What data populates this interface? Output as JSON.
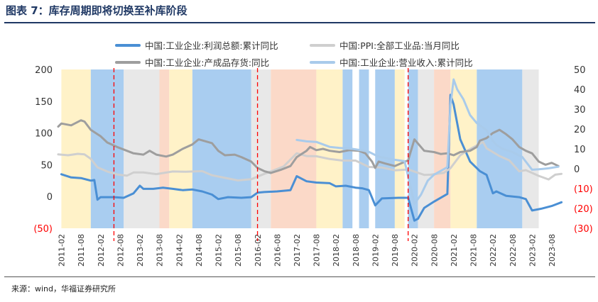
{
  "header": {
    "title": "图表 7：库存周期即将切换至补库阶段"
  },
  "footer": {
    "source": "来源：wind，华福证券研究所"
  },
  "chart_data": {
    "type": "line",
    "y_left": {
      "ticks": [
        "200",
        "150",
        "100",
        "50",
        "0",
        "(50)"
      ],
      "range": [
        -50,
        200
      ]
    },
    "y_right": {
      "ticks": [
        "50",
        "40",
        "30",
        "20",
        "10",
        "0",
        "(10)",
        "(20)",
        "(30)"
      ],
      "range": [
        -30,
        50
      ]
    },
    "x_ticks": [
      "2011-02",
      "2011-08",
      "2012-02",
      "2012-08",
      "2013-02",
      "2013-08",
      "2014-02",
      "2014-08",
      "2015-02",
      "2015-08",
      "2016-02",
      "2016-08",
      "2017-02",
      "2017-08",
      "2018-02",
      "2018-08",
      "2019-02",
      "2019-08",
      "2020-02",
      "2020-08",
      "2021-02",
      "2021-08",
      "2022-02",
      "2022-08",
      "2023-02",
      "2023-08"
    ],
    "colors": {
      "profit": "#4a8fd4",
      "ppi": "#cfcfcf",
      "inventory": "#9e9e9e",
      "revenue": "#a9cbeb",
      "band_yellow": "#fff2c8",
      "band_blue": "#a9cdf0",
      "band_gray": "#e8e8e8",
      "band_pink": "#fbd9c8",
      "divider": "#ff0000"
    },
    "bands": [
      {
        "start": 2011.08,
        "end": 2011.83,
        "color": "band_yellow"
      },
      {
        "start": 2011.83,
        "end": 2012.67,
        "color": "band_blue"
      },
      {
        "start": 2012.67,
        "end": 2013.58,
        "color": "band_gray"
      },
      {
        "start": 2013.58,
        "end": 2013.83,
        "color": "band_pink"
      },
      {
        "start": 2013.83,
        "end": 2014.42,
        "color": "band_yellow"
      },
      {
        "start": 2014.42,
        "end": 2015.92,
        "color": "band_blue"
      },
      {
        "start": 2015.92,
        "end": 2016.42,
        "color": "band_gray"
      },
      {
        "start": 2016.42,
        "end": 2017.58,
        "color": "band_pink"
      },
      {
        "start": 2017.58,
        "end": 2018.25,
        "color": "band_yellow"
      },
      {
        "start": 2018.25,
        "end": 2018.5,
        "color": "band_blue"
      },
      {
        "start": 2018.67,
        "end": 2018.92,
        "color": "band_blue"
      },
      {
        "start": 2019.08,
        "end": 2019.58,
        "color": "band_blue"
      },
      {
        "start": 2019.58,
        "end": 2019.83,
        "color": "band_yellow"
      },
      {
        "start": 2019.92,
        "end": 2020.17,
        "color": "band_blue"
      },
      {
        "start": 2020.17,
        "end": 2020.58,
        "color": "band_gray"
      },
      {
        "start": 2020.58,
        "end": 2021.0,
        "color": "band_pink"
      },
      {
        "start": 2021.0,
        "end": 2021.67,
        "color": "band_yellow"
      },
      {
        "start": 2021.67,
        "end": 2022.83,
        "color": "band_blue"
      },
      {
        "start": 2022.83,
        "end": 2023.25,
        "color": "band_gray"
      }
    ],
    "dividers": [
      2012.42,
      2016.08,
      2019.92
    ],
    "series": [
      {
        "name": "中国:工业企业:利润总额:累计同比",
        "key": "profit",
        "axis": "left",
        "width": 3,
        "points": [
          [
            2011.08,
            35
          ],
          [
            2011.33,
            30
          ],
          [
            2011.58,
            29
          ],
          [
            2011.83,
            25
          ],
          [
            2011.92,
            26
          ],
          [
            2012.0,
            -5
          ],
          [
            2012.08,
            -1
          ],
          [
            2012.42,
            -1
          ],
          [
            2012.67,
            -2
          ],
          [
            2012.92,
            5
          ],
          [
            2013.08,
            17
          ],
          [
            2013.17,
            12
          ],
          [
            2013.42,
            12
          ],
          [
            2013.67,
            14
          ],
          [
            2013.92,
            12
          ],
          [
            2014.17,
            10
          ],
          [
            2014.42,
            11
          ],
          [
            2014.67,
            8
          ],
          [
            2014.92,
            3
          ],
          [
            2015.08,
            -4
          ],
          [
            2015.33,
            -1
          ],
          [
            2015.67,
            -2
          ],
          [
            2015.92,
            -1
          ],
          [
            2016.08,
            6
          ],
          [
            2016.25,
            7
          ],
          [
            2016.58,
            8
          ],
          [
            2016.92,
            10
          ],
          [
            2017.08,
            32
          ],
          [
            2017.33,
            24
          ],
          [
            2017.58,
            22
          ],
          [
            2017.92,
            21
          ],
          [
            2018.08,
            16
          ],
          [
            2018.33,
            17
          ],
          [
            2018.58,
            14
          ],
          [
            2018.75,
            13
          ],
          [
            2018.92,
            10
          ],
          [
            2019.08,
            -14
          ],
          [
            2019.25,
            -3
          ],
          [
            2019.67,
            -2
          ],
          [
            2019.92,
            -2
          ],
          [
            2020.08,
            -38
          ],
          [
            2020.17,
            -35
          ],
          [
            2020.33,
            -18
          ],
          [
            2020.58,
            -8
          ],
          [
            2020.92,
            4
          ],
          [
            2021.0,
            160
          ],
          [
            2021.08,
            145
          ],
          [
            2021.25,
            90
          ],
          [
            2021.5,
            55
          ],
          [
            2021.75,
            40
          ],
          [
            2021.92,
            34
          ],
          [
            2022.08,
            5
          ],
          [
            2022.17,
            8
          ],
          [
            2022.42,
            1
          ],
          [
            2022.75,
            -1
          ],
          [
            2022.92,
            -4
          ],
          [
            2023.08,
            -22
          ],
          [
            2023.33,
            -19
          ],
          [
            2023.58,
            -15
          ],
          [
            2023.83,
            -9
          ]
        ]
      },
      {
        "name": "中国:PPI:全部工业品:当月同比",
        "key": "ppi",
        "axis": "right",
        "width": 3,
        "points": [
          [
            2011.0,
            7.2
          ],
          [
            2011.25,
            6.8
          ],
          [
            2011.5,
            7.5
          ],
          [
            2011.67,
            7.2
          ],
          [
            2011.83,
            5.0
          ],
          [
            2012.0,
            0.7
          ],
          [
            2012.25,
            -1.4
          ],
          [
            2012.5,
            -2.9
          ],
          [
            2012.75,
            -3.5
          ],
          [
            2012.92,
            -1.9
          ],
          [
            2013.17,
            -1.9
          ],
          [
            2013.5,
            -2.7
          ],
          [
            2013.92,
            -1.4
          ],
          [
            2014.25,
            -1.5
          ],
          [
            2014.67,
            -1.2
          ],
          [
            2014.92,
            -3.3
          ],
          [
            2015.25,
            -4.6
          ],
          [
            2015.58,
            -5.9
          ],
          [
            2015.92,
            -5.3
          ],
          [
            2016.25,
            -2.6
          ],
          [
            2016.5,
            -0.8
          ],
          [
            2016.75,
            1.2
          ],
          [
            2017.08,
            7.8
          ],
          [
            2017.33,
            6.4
          ],
          [
            2017.58,
            6.3
          ],
          [
            2017.92,
            4.9
          ],
          [
            2018.25,
            4.1
          ],
          [
            2018.58,
            4.1
          ],
          [
            2018.92,
            0.9
          ],
          [
            2019.25,
            0.6
          ],
          [
            2019.58,
            -0.8
          ],
          [
            2019.92,
            -0.4
          ],
          [
            2020.33,
            -3.1
          ],
          [
            2020.5,
            -3.0
          ],
          [
            2020.83,
            -2.1
          ],
          [
            2021.0,
            0.3
          ],
          [
            2021.25,
            6.8
          ],
          [
            2021.42,
            9.0
          ],
          [
            2021.58,
            10.7
          ],
          [
            2021.83,
            13.5
          ],
          [
            2021.92,
            10.3
          ],
          [
            2022.25,
            6.4
          ],
          [
            2022.5,
            4.2
          ],
          [
            2022.75,
            -1.3
          ],
          [
            2022.92,
            -0.7
          ],
          [
            2023.25,
            -3.6
          ],
          [
            2023.5,
            -5.4
          ],
          [
            2023.67,
            -3.0
          ],
          [
            2023.83,
            -2.6
          ]
        ]
      },
      {
        "name": "中国:工业企业:产成品存货:同比",
        "key": "inventory",
        "axis": "left",
        "width": 3,
        "points": [
          [
            2011.0,
            110
          ],
          [
            2011.08,
            115
          ],
          [
            2011.33,
            112
          ],
          [
            2011.58,
            120
          ],
          [
            2011.67,
            118
          ],
          [
            2011.83,
            105
          ],
          [
            2012.08,
            95
          ],
          [
            2012.25,
            85
          ],
          [
            2012.5,
            78
          ],
          [
            2012.75,
            72
          ],
          [
            2012.92,
            68
          ],
          [
            2013.17,
            66
          ],
          [
            2013.33,
            72
          ],
          [
            2013.5,
            66
          ],
          [
            2013.75,
            63
          ],
          [
            2013.92,
            66
          ],
          [
            2014.17,
            75
          ],
          [
            2014.42,
            82
          ],
          [
            2014.58,
            90
          ],
          [
            2014.92,
            84
          ],
          [
            2015.08,
            72
          ],
          [
            2015.25,
            65
          ],
          [
            2015.5,
            66
          ],
          [
            2015.67,
            62
          ],
          [
            2015.92,
            55
          ],
          [
            2016.08,
            45
          ],
          [
            2016.25,
            40
          ],
          [
            2016.42,
            37
          ],
          [
            2016.67,
            42
          ],
          [
            2016.92,
            48
          ],
          [
            2017.08,
            62
          ],
          [
            2017.33,
            72
          ],
          [
            2017.42,
            78
          ],
          [
            2017.58,
            73
          ],
          [
            2017.75,
            75
          ],
          [
            2017.92,
            72
          ],
          [
            2018.17,
            70
          ],
          [
            2018.42,
            73
          ],
          [
            2018.67,
            72
          ],
          [
            2018.83,
            68
          ],
          [
            2019.0,
            55
          ],
          [
            2019.08,
            45
          ],
          [
            2019.17,
            55
          ],
          [
            2019.33,
            52
          ],
          [
            2019.58,
            48
          ],
          [
            2019.92,
            57
          ],
          [
            2020.08,
            90
          ],
          [
            2020.33,
            72
          ],
          [
            2020.58,
            70
          ],
          [
            2020.75,
            67
          ],
          [
            2020.92,
            68
          ],
          [
            2021.08,
            65
          ],
          [
            2021.25,
            70
          ],
          [
            2021.5,
            72
          ],
          [
            2021.67,
            78
          ],
          [
            2021.75,
            88
          ],
          [
            2021.92,
            92
          ],
          [
            2022.08,
            100
          ],
          [
            2022.25,
            105
          ],
          [
            2022.42,
            98
          ],
          [
            2022.58,
            90
          ],
          [
            2022.75,
            78
          ],
          [
            2022.92,
            72
          ],
          [
            2023.08,
            68
          ],
          [
            2023.25,
            55
          ],
          [
            2023.42,
            50
          ],
          [
            2023.58,
            53
          ],
          [
            2023.75,
            48
          ]
        ]
      },
      {
        "name": "中国:工业企业:营业收入:累计同比",
        "key": "revenue",
        "axis": "right",
        "width": 3,
        "points": [
          [
            2017.08,
            14.5
          ],
          [
            2017.33,
            13.8
          ],
          [
            2017.58,
            13.5
          ],
          [
            2017.92,
            11.0
          ],
          [
            2018.17,
            10.5
          ],
          [
            2018.5,
            10.0
          ],
          [
            2018.75,
            9.2
          ],
          [
            2018.92,
            8.5
          ],
          [
            2019.17,
            6.0
          ],
          [
            2019.33,
            5.5
          ],
          [
            2019.58,
            4.5
          ],
          [
            2019.83,
            3.8
          ],
          [
            2020.08,
            -17.7
          ],
          [
            2020.25,
            -13
          ],
          [
            2020.42,
            -6
          ],
          [
            2020.58,
            -3
          ],
          [
            2020.92,
            0.8
          ],
          [
            2021.0,
            32
          ],
          [
            2021.08,
            45
          ],
          [
            2021.17,
            40
          ],
          [
            2021.33,
            35
          ],
          [
            2021.5,
            27
          ],
          [
            2021.67,
            23
          ],
          [
            2021.92,
            19.4
          ],
          [
            2022.08,
            14
          ],
          [
            2022.17,
            12
          ],
          [
            2022.33,
            10
          ],
          [
            2022.58,
            8.4
          ],
          [
            2022.83,
            5.9
          ],
          [
            2023.08,
            -0.5
          ],
          [
            2023.25,
            -0.3
          ],
          [
            2023.5,
            0.2
          ],
          [
            2023.75,
            1.0
          ]
        ]
      }
    ]
  }
}
